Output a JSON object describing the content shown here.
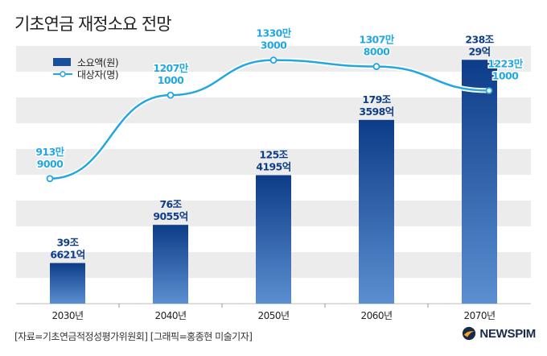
{
  "title": "기초연금 재정소요 전망",
  "source": "[자료=기초연금적정성평가위원회] [그래픽=홍종현 미술기자]",
  "logo": "NEWSPIM",
  "colors": {
    "bar": "#1a4f9c",
    "line": "#22a7e0",
    "band": "#ececec",
    "label_bar": "#0f3e86"
  },
  "chart_data": {
    "type": "bar",
    "categories": [
      "2030년",
      "2040년",
      "2050년",
      "2060년",
      "2070년"
    ],
    "series": [
      {
        "name": "소요액(원)",
        "type": "bar",
        "values": [
          39.6621,
          76.9055,
          125.4195,
          179.3598,
          238.0029
        ],
        "labels": [
          [
            "39조",
            "6621억"
          ],
          [
            "76조",
            "9055억"
          ],
          [
            "125조",
            "4195억"
          ],
          [
            "179조",
            "3598억"
          ],
          [
            "238조",
            "29억"
          ]
        ]
      },
      {
        "name": "대상자(명)",
        "type": "line",
        "values": [
          9139000,
          12071000,
          13303000,
          13078000,
          12231000
        ],
        "labels": [
          [
            "913만",
            "9000"
          ],
          [
            "1207만",
            "1000"
          ],
          [
            "1330만",
            "3000"
          ],
          [
            "1307만",
            "8000"
          ],
          [
            "1223만",
            "1000"
          ]
        ]
      }
    ],
    "legend_position": "top-left",
    "grid": false
  }
}
